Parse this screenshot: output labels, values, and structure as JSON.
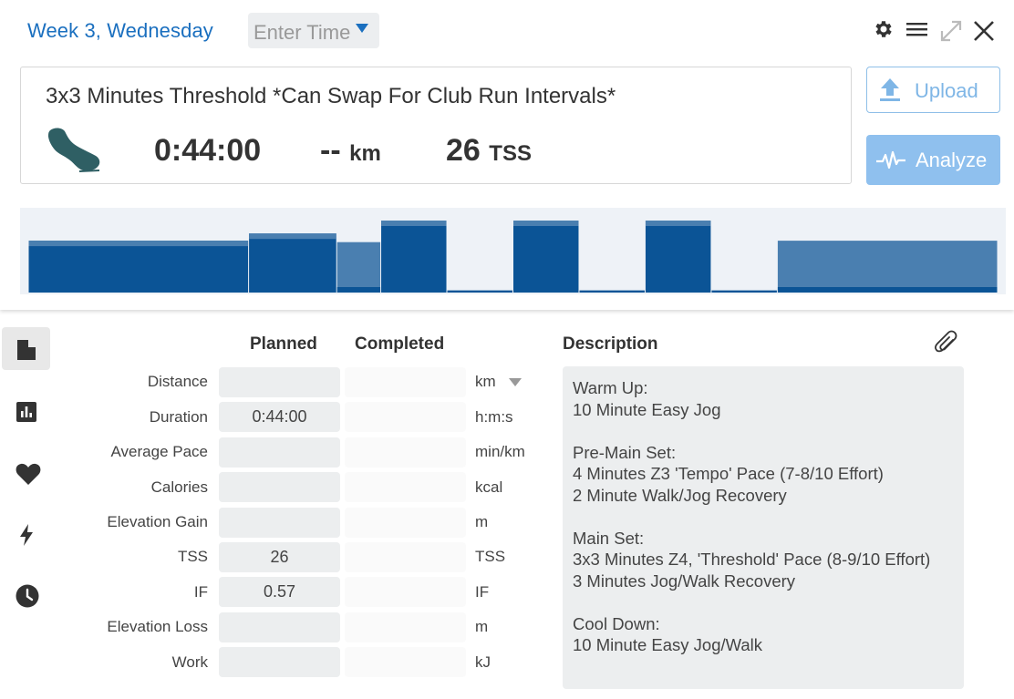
{
  "header": {
    "day_title": "Week 3, Wednesday",
    "time_placeholder": "Enter Time",
    "icons": [
      "gear-icon",
      "menu-icon",
      "expand-icon",
      "close-icon"
    ]
  },
  "workout": {
    "title": "3x3 Minutes Threshold *Can Swap For Club Run Intervals*",
    "sport_icon": "running-shoe-icon",
    "duration": "0:44:00",
    "distance_value": "--",
    "distance_unit": "km",
    "tss_value": "26",
    "tss_unit": "TSS"
  },
  "buttons": {
    "upload": "Upload",
    "analyze": "Analyze"
  },
  "colors": {
    "accent": "#1a6fbf",
    "bar_dark": "#0b5496",
    "bar_light": "#4a7fb0",
    "graph_bg": "#eef2f7"
  },
  "sidebar": {
    "items": [
      {
        "name": "summary-icon",
        "active": true
      },
      {
        "name": "chart-icon",
        "active": false
      },
      {
        "name": "heart-icon",
        "active": false
      },
      {
        "name": "lightning-icon",
        "active": false
      },
      {
        "name": "clock-icon",
        "active": false
      }
    ]
  },
  "table": {
    "headers": {
      "planned": "Planned",
      "completed": "Completed"
    },
    "rows": [
      {
        "label": "Distance",
        "planned": "",
        "completed": "",
        "unit": "km"
      },
      {
        "label": "Duration",
        "planned": "0:44:00",
        "completed": "",
        "unit": "h:m:s"
      },
      {
        "label": "Average Pace",
        "planned": "",
        "completed": "",
        "unit": "min/km"
      },
      {
        "label": "Calories",
        "planned": "",
        "completed": "",
        "unit": "kcal"
      },
      {
        "label": "Elevation Gain",
        "planned": "",
        "completed": "",
        "unit": "m"
      },
      {
        "label": "TSS",
        "planned": "26",
        "completed": "",
        "unit": "TSS"
      },
      {
        "label": "IF",
        "planned": "0.57",
        "completed": "",
        "unit": "IF"
      },
      {
        "label": "Elevation Loss",
        "planned": "",
        "completed": "",
        "unit": "m"
      },
      {
        "label": "Work",
        "planned": "",
        "completed": "",
        "unit": "kJ"
      }
    ]
  },
  "description": {
    "heading": "Description",
    "text": "Warm Up:\n10 Minute Easy Jog\n\nPre-Main Set:\n4 Minutes Z3 'Tempo' Pace (7-8/10 Effort)\n2 Minute Walk/Jog Recovery\n\nMain Set:\n3x3 Minutes Z4, 'Threshold' Pace (8-9/10 Effort)\n3 Minutes Jog/Walk Recovery\n\nCool Down:\n10 Minute Easy Jog/Walk"
  },
  "chart_data": {
    "type": "bar",
    "title": "",
    "segments": [
      {
        "start": 0,
        "end": 10,
        "intensity": 0.72,
        "style": "warmup"
      },
      {
        "start": 10,
        "end": 14,
        "intensity": 0.82,
        "style": "tempo"
      },
      {
        "start": 14,
        "end": 16,
        "intensity": 0.7,
        "style": "recovery"
      },
      {
        "start": 16,
        "end": 19,
        "intensity": 1.0,
        "style": "threshold"
      },
      {
        "start": 19,
        "end": 22,
        "intensity": 0.03,
        "style": "rest"
      },
      {
        "start": 22,
        "end": 25,
        "intensity": 1.0,
        "style": "threshold"
      },
      {
        "start": 25,
        "end": 28,
        "intensity": 0.03,
        "style": "rest"
      },
      {
        "start": 28,
        "end": 31,
        "intensity": 1.0,
        "style": "threshold"
      },
      {
        "start": 31,
        "end": 34,
        "intensity": 0.03,
        "style": "rest"
      },
      {
        "start": 34,
        "end": 44,
        "intensity": 0.72,
        "style": "cooldown"
      }
    ],
    "xlim": [
      0,
      44
    ],
    "ylim": [
      0,
      1.0
    ]
  }
}
